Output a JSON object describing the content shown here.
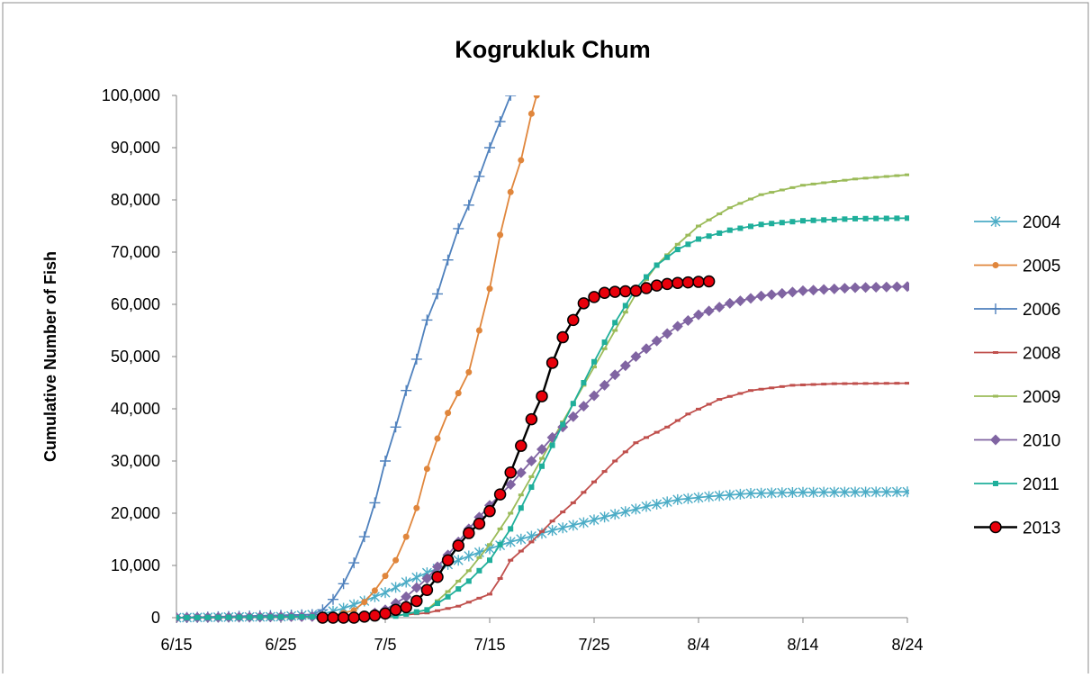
{
  "chart_data": {
    "type": "line",
    "title": "Kogrukluk Chum",
    "xlabel": "",
    "ylabel": "Cumulative Number of Fish",
    "x_axis": {
      "start": "6/15",
      "end": "8/24",
      "tick_labels": [
        "6/15",
        "6/25",
        "7/5",
        "7/15",
        "7/25",
        "8/4",
        "8/14",
        "8/24"
      ]
    },
    "y_axis": {
      "min": 0,
      "max": 100000,
      "step": 10000,
      "tick_labels": [
        "0",
        "10,000",
        "20,000",
        "30,000",
        "40,000",
        "50,000",
        "60,000",
        "70,000",
        "80,000",
        "90,000",
        "100,000"
      ]
    },
    "grid": false,
    "legend_position": "right",
    "series": [
      {
        "name": "2004",
        "color": "#4BACC6",
        "marker": "star",
        "points": [
          [
            "6/15",
            0
          ],
          [
            "6/25",
            200
          ],
          [
            "6/29",
            700
          ],
          [
            "7/1",
            1800
          ],
          [
            "7/3",
            3200
          ],
          [
            "7/5",
            4800
          ],
          [
            "7/7",
            6800
          ],
          [
            "7/9",
            8600
          ],
          [
            "7/11",
            10200
          ],
          [
            "7/13",
            11800
          ],
          [
            "7/15",
            13200
          ],
          [
            "7/17",
            14500
          ],
          [
            "7/19",
            15600
          ],
          [
            "7/21",
            16700
          ],
          [
            "7/24",
            18200
          ],
          [
            "7/27",
            19800
          ],
          [
            "7/30",
            21300
          ],
          [
            "8/2",
            22600
          ],
          [
            "8/5",
            23200
          ],
          [
            "8/9",
            23800
          ],
          [
            "8/14",
            24000
          ],
          [
            "8/24",
            24100
          ]
        ]
      },
      {
        "name": "2005",
        "color": "#E0863C",
        "marker": "circle",
        "points": [
          [
            "6/15",
            0
          ],
          [
            "6/28",
            100
          ],
          [
            "6/30",
            400
          ],
          [
            "7/2",
            1400
          ],
          [
            "7/3",
            3000
          ],
          [
            "7/4",
            5200
          ],
          [
            "7/5",
            8000
          ],
          [
            "7/6",
            11000
          ],
          [
            "7/7",
            15500
          ],
          [
            "7/8",
            21000
          ],
          [
            "7/9",
            28500
          ],
          [
            "7/10",
            34300
          ],
          [
            "7/11",
            39200
          ],
          [
            "7/12",
            43000
          ],
          [
            "7/13",
            47000
          ],
          [
            "7/14",
            55000
          ],
          [
            "7/15",
            63000
          ],
          [
            "7/16",
            73300
          ],
          [
            "7/17",
            81500
          ],
          [
            "7/18",
            87600
          ],
          [
            "7/19",
            96500
          ],
          [
            "7/19.5",
            100000
          ]
        ]
      },
      {
        "name": "2006",
        "color": "#4F81BD",
        "marker": "plus",
        "points": [
          [
            "6/15",
            0
          ],
          [
            "6/28",
            600
          ],
          [
            "6/29",
            1500
          ],
          [
            "6/30",
            3500
          ],
          [
            "7/1",
            6500
          ],
          [
            "7/2",
            10500
          ],
          [
            "7/3",
            15500
          ],
          [
            "7/4",
            22000
          ],
          [
            "7/5",
            30000
          ],
          [
            "7/6",
            36500
          ],
          [
            "7/7",
            43500
          ],
          [
            "7/8",
            49500
          ],
          [
            "7/9",
            57000
          ],
          [
            "7/10",
            62000
          ],
          [
            "7/11",
            68500
          ],
          [
            "7/12",
            74500
          ],
          [
            "7/13",
            79000
          ],
          [
            "7/14",
            84500
          ],
          [
            "7/15",
            90000
          ],
          [
            "7/16",
            95000
          ],
          [
            "7/17",
            100000
          ]
        ]
      },
      {
        "name": "2008",
        "color": "#C0504D",
        "marker": "dash",
        "points": [
          [
            "6/15",
            0
          ],
          [
            "7/5",
            300
          ],
          [
            "7/9",
            900
          ],
          [
            "7/12",
            2200
          ],
          [
            "7/15",
            4500
          ],
          [
            "7/16",
            7500
          ],
          [
            "7/17",
            11000
          ],
          [
            "7/19",
            14500
          ],
          [
            "7/21",
            18500
          ],
          [
            "7/23",
            22000
          ],
          [
            "7/25",
            26000
          ],
          [
            "7/27",
            30000
          ],
          [
            "7/29",
            33500
          ],
          [
            "8/1",
            36500
          ],
          [
            "8/3",
            39000
          ],
          [
            "8/6",
            41800
          ],
          [
            "8/9",
            43500
          ],
          [
            "8/13",
            44500
          ],
          [
            "8/17",
            44800
          ],
          [
            "8/24",
            44900
          ]
        ]
      },
      {
        "name": "2009",
        "color": "#9BBB59",
        "marker": "dash",
        "points": [
          [
            "6/15",
            0
          ],
          [
            "7/6",
            300
          ],
          [
            "7/9",
            1500
          ],
          [
            "7/11",
            5000
          ],
          [
            "7/13",
            9000
          ],
          [
            "7/15",
            14000
          ],
          [
            "7/17",
            20000
          ],
          [
            "7/19",
            27000
          ],
          [
            "7/21",
            34000
          ],
          [
            "7/23",
            41000
          ],
          [
            "7/25",
            48000
          ],
          [
            "7/27",
            55000
          ],
          [
            "7/29",
            62000
          ],
          [
            "7/31",
            67500
          ],
          [
            "8/2",
            71500
          ],
          [
            "8/4",
            75000
          ],
          [
            "8/7",
            78500
          ],
          [
            "8/10",
            81000
          ],
          [
            "8/14",
            82800
          ],
          [
            "8/19",
            84000
          ],
          [
            "8/24",
            84800
          ]
        ]
      },
      {
        "name": "2010",
        "color": "#8064A2",
        "marker": "diamond",
        "points": [
          [
            "6/15",
            0
          ],
          [
            "7/3",
            300
          ],
          [
            "7/5",
            1500
          ],
          [
            "7/7",
            4000
          ],
          [
            "7/9",
            7500
          ],
          [
            "7/11",
            12000
          ],
          [
            "7/13",
            17000
          ],
          [
            "7/15",
            21500
          ],
          [
            "7/17",
            25500
          ],
          [
            "7/19",
            30000
          ],
          [
            "7/21",
            34500
          ],
          [
            "7/23",
            38500
          ],
          [
            "7/25",
            42500
          ],
          [
            "7/27",
            46500
          ],
          [
            "7/29",
            50000
          ],
          [
            "7/31",
            53000
          ],
          [
            "8/2",
            55800
          ],
          [
            "8/4",
            58000
          ],
          [
            "8/7",
            60200
          ],
          [
            "8/10",
            61600
          ],
          [
            "8/14",
            62600
          ],
          [
            "8/19",
            63200
          ],
          [
            "8/24",
            63400
          ]
        ]
      },
      {
        "name": "2011",
        "color": "#1FAF9B",
        "marker": "square",
        "points": [
          [
            "6/15",
            0
          ],
          [
            "7/6",
            300
          ],
          [
            "7/9",
            1500
          ],
          [
            "7/11",
            4000
          ],
          [
            "7/13",
            7000
          ],
          [
            "7/15",
            11000
          ],
          [
            "7/17",
            17000
          ],
          [
            "7/19",
            25000
          ],
          [
            "7/21",
            33000
          ],
          [
            "7/23",
            41000
          ],
          [
            "7/25",
            49000
          ],
          [
            "7/27",
            56500
          ],
          [
            "7/29",
            63000
          ],
          [
            "7/31",
            67500
          ],
          [
            "8/2",
            70500
          ],
          [
            "8/4",
            72500
          ],
          [
            "8/7",
            74200
          ],
          [
            "8/10",
            75300
          ],
          [
            "8/14",
            76000
          ],
          [
            "8/19",
            76400
          ],
          [
            "8/24",
            76500
          ]
        ]
      },
      {
        "name": "2013",
        "color": "#000000",
        "marker": "bigcircle",
        "points": [
          [
            "6/29",
            0
          ],
          [
            "6/30",
            0
          ],
          [
            "7/1",
            0
          ],
          [
            "7/2",
            0
          ],
          [
            "7/3",
            200
          ],
          [
            "7/4",
            400
          ],
          [
            "7/5",
            800
          ],
          [
            "7/6",
            1500
          ],
          [
            "7/7",
            2000
          ],
          [
            "7/8",
            3200
          ],
          [
            "7/9",
            5300
          ],
          [
            "7/10",
            7800
          ],
          [
            "7/11",
            11000
          ],
          [
            "7/12",
            13800
          ],
          [
            "7/13",
            16200
          ],
          [
            "7/14",
            18000
          ],
          [
            "7/15",
            20400
          ],
          [
            "7/16",
            23600
          ],
          [
            "7/17",
            27800
          ],
          [
            "7/18",
            32900
          ],
          [
            "7/19",
            38000
          ],
          [
            "7/20",
            42400
          ],
          [
            "7/21",
            48800
          ],
          [
            "7/22",
            53700
          ],
          [
            "7/23",
            57000
          ],
          [
            "7/24",
            60200
          ],
          [
            "7/25",
            61400
          ],
          [
            "7/26",
            62200
          ],
          [
            "7/27",
            62400
          ],
          [
            "7/28",
            62500
          ],
          [
            "7/29",
            62600
          ],
          [
            "7/30",
            63100
          ],
          [
            "7/31",
            63600
          ],
          [
            "8/1",
            63900
          ],
          [
            "8/2",
            64100
          ],
          [
            "8/3",
            64200
          ],
          [
            "8/4",
            64300
          ],
          [
            "8/5",
            64400
          ]
        ]
      }
    ]
  }
}
